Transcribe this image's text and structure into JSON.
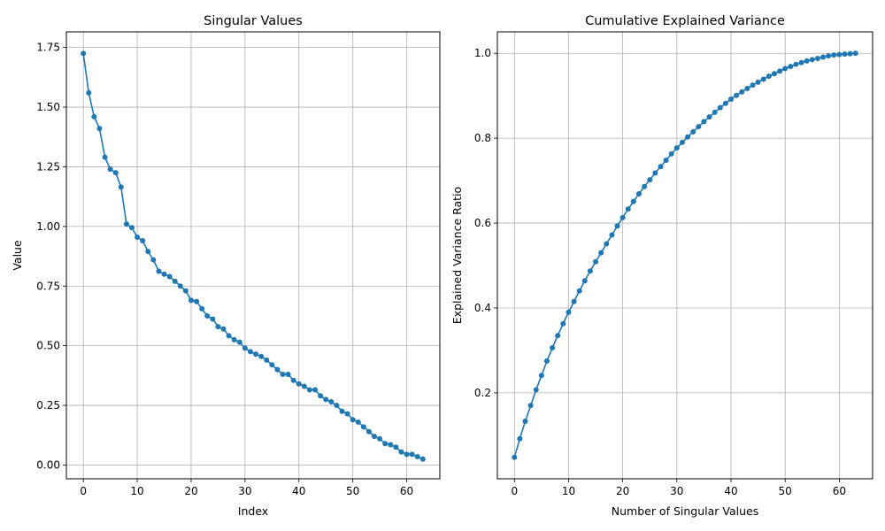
{
  "chart_data": [
    {
      "type": "line",
      "title": "Singular Values",
      "xlabel": "Index",
      "ylabel": "Value",
      "xlim": [
        -3.15,
        66.15
      ],
      "ylim": [
        -0.0576,
        1.8154
      ],
      "xticks": [
        0,
        10,
        20,
        30,
        40,
        50,
        60
      ],
      "xtick_labels": [
        "0",
        "10",
        "20",
        "30",
        "40",
        "50",
        "60"
      ],
      "yticks": [
        0.0,
        0.25,
        0.5,
        0.75,
        1.0,
        1.25,
        1.5,
        1.75
      ],
      "ytick_labels": [
        "0.00",
        "0.25",
        "0.50",
        "0.75",
        "1.00",
        "1.25",
        "1.50",
        "1.75"
      ],
      "grid": true,
      "markers": true,
      "color": "#1f77b4",
      "series": [
        {
          "x": [
            0,
            1,
            2,
            3,
            4,
            5,
            6,
            7,
            8,
            9,
            10,
            11,
            12,
            13,
            14,
            15,
            16,
            17,
            18,
            19,
            20,
            21,
            22,
            23,
            24,
            25,
            26,
            27,
            28,
            29,
            30,
            31,
            32,
            33,
            34,
            35,
            36,
            37,
            38,
            39,
            40,
            41,
            42,
            43,
            44,
            45,
            46,
            47,
            48,
            49,
            50,
            51,
            52,
            53,
            54,
            55,
            56,
            57,
            58,
            59,
            60,
            61,
            62,
            63
          ],
          "values": [
            1.725,
            1.56,
            1.46,
            1.41,
            1.29,
            1.24,
            1.225,
            1.165,
            1.01,
            0.995,
            0.955,
            0.94,
            0.895,
            0.86,
            0.812,
            0.8,
            0.79,
            0.77,
            0.75,
            0.73,
            0.69,
            0.685,
            0.655,
            0.625,
            0.612,
            0.58,
            0.57,
            0.542,
            0.525,
            0.515,
            0.49,
            0.475,
            0.465,
            0.455,
            0.44,
            0.42,
            0.4,
            0.38,
            0.38,
            0.355,
            0.34,
            0.33,
            0.315,
            0.315,
            0.29,
            0.275,
            0.265,
            0.25,
            0.225,
            0.215,
            0.19,
            0.18,
            0.16,
            0.14,
            0.12,
            0.11,
            0.09,
            0.085,
            0.075,
            0.055,
            0.045,
            0.045,
            0.035,
            0.025
          ]
        }
      ]
    },
    {
      "type": "line",
      "title": "Cumulative Explained Variance",
      "xlabel": "Number of Singular Values",
      "ylabel": "Explained Variance Ratio",
      "xlim": [
        -3.15,
        66.15
      ],
      "ylim": [
        -0.0025,
        1.0505
      ],
      "xticks": [
        0,
        10,
        20,
        30,
        40,
        50,
        60
      ],
      "xtick_labels": [
        "0",
        "10",
        "20",
        "30",
        "40",
        "50",
        "60"
      ],
      "yticks": [
        0.2,
        0.4,
        0.6,
        0.8,
        1.0
      ],
      "ytick_labels": [
        "0.2",
        "0.4",
        "0.6",
        "0.8",
        "1.0"
      ],
      "grid": true,
      "markers": true,
      "color": "#1f77b4",
      "series": [
        {
          "x": [
            0,
            1,
            2,
            3,
            4,
            5,
            6,
            7,
            8,
            9,
            10,
            11,
            12,
            13,
            14,
            15,
            16,
            17,
            18,
            19,
            20,
            21,
            22,
            23,
            24,
            25,
            26,
            27,
            28,
            29,
            30,
            31,
            32,
            33,
            34,
            35,
            36,
            37,
            38,
            39,
            40,
            41,
            42,
            43,
            44,
            45,
            46,
            47,
            48,
            49,
            50,
            51,
            52,
            53,
            54,
            55,
            56,
            57,
            58,
            59,
            60,
            61,
            62,
            63
          ],
          "values": [
            0.048,
            0.092,
            0.133,
            0.17,
            0.207,
            0.241,
            0.275,
            0.306,
            0.335,
            0.363,
            0.39,
            0.415,
            0.44,
            0.464,
            0.487,
            0.509,
            0.53,
            0.551,
            0.572,
            0.593,
            0.613,
            0.633,
            0.651,
            0.669,
            0.686,
            0.702,
            0.718,
            0.733,
            0.748,
            0.763,
            0.777,
            0.79,
            0.803,
            0.815,
            0.827,
            0.839,
            0.85,
            0.861,
            0.872,
            0.882,
            0.892,
            0.901,
            0.909,
            0.917,
            0.925,
            0.932,
            0.939,
            0.946,
            0.952,
            0.958,
            0.964,
            0.969,
            0.974,
            0.978,
            0.982,
            0.985,
            0.988,
            0.991,
            0.994,
            0.996,
            0.997,
            0.998,
            0.999,
            1.0
          ]
        }
      ]
    }
  ]
}
